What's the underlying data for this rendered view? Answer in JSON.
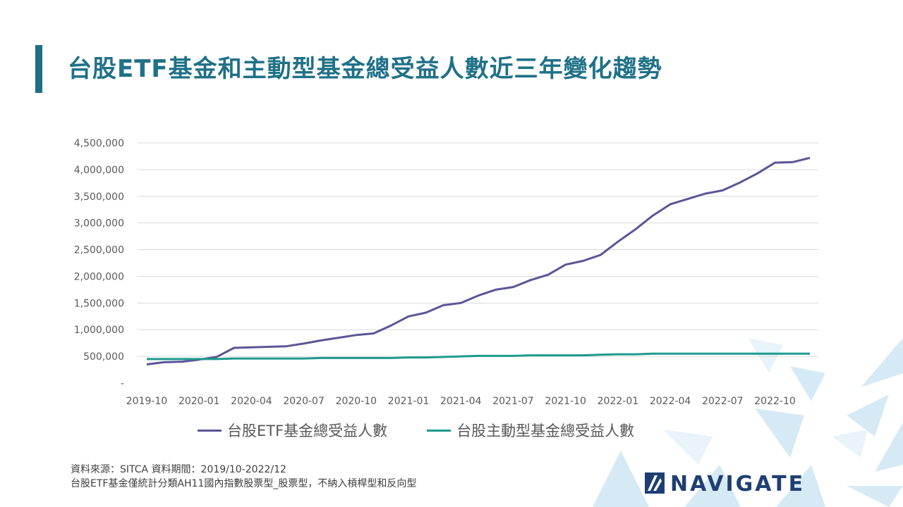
{
  "header": {
    "title": "台股ETF基金和主動型基金總受益人數近三年變化趨勢"
  },
  "colors": {
    "title": "#1f7187",
    "accent_bar": "#1f6f86",
    "etf_series": "#5b5596",
    "active_series": "#1e9a8e",
    "gridline": "#d9d9d9",
    "logo": "#1f3f73",
    "decor": "#cfe7f3"
  },
  "chart_data": {
    "type": "line",
    "title": "",
    "xlabel": "",
    "ylabel": "",
    "ylim": [
      0,
      4500000
    ],
    "y_ticks": [
      "-",
      "500,000",
      "1,000,000",
      "1,500,000",
      "2,000,000",
      "2,500,000",
      "3,000,000",
      "3,500,000",
      "4,000,000",
      "4,500,000"
    ],
    "x": [
      "2019-10",
      "2019-11",
      "2019-12",
      "2020-01",
      "2020-02",
      "2020-03",
      "2020-04",
      "2020-05",
      "2020-06",
      "2020-07",
      "2020-08",
      "2020-09",
      "2020-10",
      "2020-11",
      "2020-12",
      "2021-01",
      "2021-02",
      "2021-03",
      "2021-04",
      "2021-05",
      "2021-06",
      "2021-07",
      "2021-08",
      "2021-09",
      "2021-10",
      "2021-11",
      "2021-12",
      "2022-01",
      "2022-02",
      "2022-03",
      "2022-04",
      "2022-05",
      "2022-06",
      "2022-07",
      "2022-08",
      "2022-09",
      "2022-10",
      "2022-11",
      "2022-12"
    ],
    "x_tick_labels": [
      "2019-10",
      "2020-01",
      "2020-04",
      "2020-07",
      "2020-10",
      "2021-01",
      "2021-04",
      "2021-07",
      "2021-10",
      "2022-01",
      "2022-04",
      "2022-07",
      "2022-10"
    ],
    "grid": true,
    "legend_position": "bottom",
    "series": [
      {
        "name": "台股ETF基金總受益人數",
        "values": [
          350000,
          390000,
          400000,
          440000,
          490000,
          660000,
          670000,
          680000,
          690000,
          740000,
          800000,
          850000,
          900000,
          930000,
          1080000,
          1250000,
          1320000,
          1460000,
          1500000,
          1640000,
          1750000,
          1800000,
          1930000,
          2030000,
          2220000,
          2290000,
          2400000,
          2650000,
          2880000,
          3140000,
          3350000,
          3450000,
          3550000,
          3610000,
          3760000,
          3930000,
          4130000,
          4140000,
          4220000
        ]
      },
      {
        "name": "台股主動型基金總受益人數",
        "values": [
          450000,
          450000,
          450000,
          450000,
          450000,
          460000,
          460000,
          460000,
          460000,
          460000,
          470000,
          470000,
          470000,
          470000,
          470000,
          480000,
          480000,
          490000,
          500000,
          510000,
          510000,
          510000,
          520000,
          520000,
          520000,
          520000,
          530000,
          540000,
          540000,
          550000,
          550000,
          550000,
          550000,
          550000,
          550000,
          550000,
          550000,
          550000,
          550000
        ]
      }
    ]
  },
  "legend": {
    "etf_label": "台股ETF基金總受益人數",
    "active_label": "台股主動型基金總受益人數"
  },
  "footnote": {
    "line1": "資料來源：SITCA  資料期間：2019/10-2022/12",
    "line2": "台股ETF基金僅統計分類AH11國內指數股票型_股票型，不納入槓桿型和反向型"
  },
  "logo": {
    "text": "NAVIGATE",
    "icon": "navigate-logo-icon"
  }
}
